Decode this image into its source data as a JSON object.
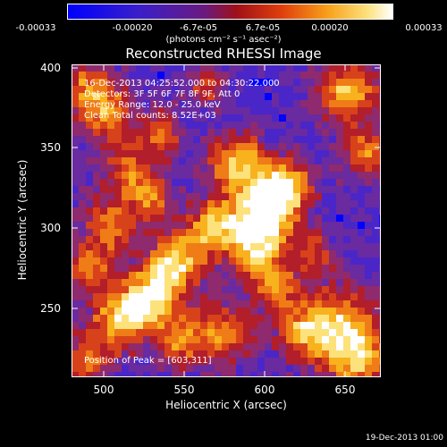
{
  "colorbar": {
    "ticks": [
      "-0.00033",
      "-0.00020",
      "-6.7e-05",
      "6.7e-05",
      "0.00020",
      "0.00033"
    ],
    "units": "(photons cm⁻² s⁻¹ asec⁻²)"
  },
  "plot": {
    "title": "Reconstructed RHESSI Image",
    "info": {
      "line1": "16-Dec-2013 04:25:52.000 to 04:30:22.000",
      "line2": "Detectors: 3F 5F 6F 7F 8F 9F, Att 0",
      "line3": "Energy Range: 12.0 - 25.0 keV",
      "line4": "Clean     Total counts: 8.52E+03"
    },
    "peak_label": "Position of Peak = [603,311]",
    "xlabel": "Heliocentric X (arcsec)",
    "ylabel": "Heliocentric Y (arcsec)",
    "x_ticks": [
      "500",
      "550",
      "600",
      "650"
    ],
    "y_ticks": [
      "250",
      "300",
      "350",
      "400"
    ],
    "x_range": [
      480,
      672
    ],
    "y_range": [
      207,
      402
    ],
    "palette": [
      "#0000ff",
      "#4a26c8",
      "#6a2aa0",
      "#8f2a6e",
      "#b21e2a",
      "#d8421a",
      "#ef7c16",
      "#f7b21e",
      "#fde27c",
      "#ffffff"
    ]
  },
  "timestamp": "19-Dec-2013 01:00"
}
